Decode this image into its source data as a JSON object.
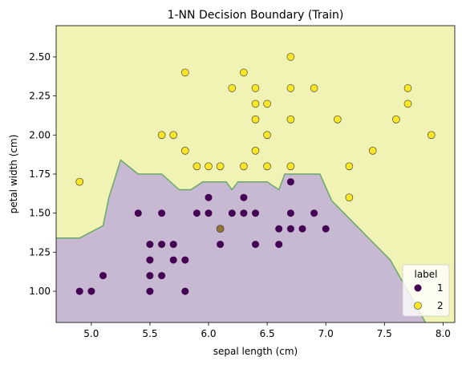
{
  "chart_data": {
    "type": "scatter",
    "title": "1-NN Decision Boundary (Train)",
    "xlabel": "sepal length (cm)",
    "ylabel": "petal width (cm)",
    "xlim": [
      4.7,
      8.1
    ],
    "ylim": [
      0.8,
      2.7
    ],
    "x_ticks": [
      5.0,
      5.5,
      6.0,
      6.5,
      7.0,
      7.5,
      8.0
    ],
    "x_tick_labels": [
      "5.0",
      "5.5",
      "6.0",
      "6.5",
      "7.0",
      "7.5",
      "8.0"
    ],
    "y_ticks": [
      1.0,
      1.25,
      1.5,
      1.75,
      2.0,
      2.25,
      2.5
    ],
    "y_tick_labels": [
      "1.00",
      "1.25",
      "1.50",
      "1.75",
      "2.00",
      "2.25",
      "2.50"
    ],
    "grid": false,
    "legend": {
      "title": "label",
      "placement": "lower-right",
      "entries": [
        "1",
        "2"
      ]
    },
    "regions": {
      "class_1_fill": "#c8b9d3",
      "class_2_fill": "#f0f3b4",
      "boundary_color": "#6aa76a",
      "boundary": [
        [
          4.7,
          1.34
        ],
        [
          4.9,
          1.34
        ],
        [
          5.0,
          1.38
        ],
        [
          5.1,
          1.42
        ],
        [
          5.15,
          1.6
        ],
        [
          5.25,
          1.84
        ],
        [
          5.4,
          1.75
        ],
        [
          5.6,
          1.75
        ],
        [
          5.75,
          1.65
        ],
        [
          5.85,
          1.65
        ],
        [
          5.95,
          1.7
        ],
        [
          6.15,
          1.7
        ],
        [
          6.2,
          1.65
        ],
        [
          6.25,
          1.7
        ],
        [
          6.5,
          1.7
        ],
        [
          6.6,
          1.65
        ],
        [
          6.65,
          1.75
        ],
        [
          6.95,
          1.75
        ],
        [
          7.05,
          1.58
        ],
        [
          7.55,
          1.2
        ],
        [
          7.85,
          0.8
        ]
      ]
    },
    "series": [
      {
        "name": "1",
        "color": "#440154",
        "points": [
          [
            4.9,
            1.0
          ],
          [
            5.0,
            1.0
          ],
          [
            5.1,
            1.1
          ],
          [
            5.4,
            1.5
          ],
          [
            5.5,
            1.3
          ],
          [
            5.5,
            1.2
          ],
          [
            5.5,
            1.1
          ],
          [
            5.5,
            1.0
          ],
          [
            5.6,
            1.5
          ],
          [
            5.6,
            1.3
          ],
          [
            5.6,
            1.1
          ],
          [
            5.7,
            1.3
          ],
          [
            5.7,
            1.2
          ],
          [
            5.8,
            1.2
          ],
          [
            5.8,
            1.0
          ],
          [
            5.9,
            1.5
          ],
          [
            6.0,
            1.6
          ],
          [
            6.0,
            1.5
          ],
          [
            6.1,
            1.4
          ],
          [
            6.1,
            1.3
          ],
          [
            6.2,
            1.5
          ],
          [
            6.3,
            1.6
          ],
          [
            6.3,
            1.5
          ],
          [
            6.4,
            1.5
          ],
          [
            6.4,
            1.3
          ],
          [
            6.6,
            1.4
          ],
          [
            6.6,
            1.3
          ],
          [
            6.7,
            1.7
          ],
          [
            6.7,
            1.5
          ],
          [
            6.7,
            1.4
          ],
          [
            6.8,
            1.4
          ],
          [
            6.9,
            1.5
          ],
          [
            7.0,
            1.4
          ]
        ]
      },
      {
        "name": "2",
        "color": "#fde725",
        "points": [
          [
            4.9,
            1.7
          ],
          [
            5.6,
            2.0
          ],
          [
            5.7,
            2.0
          ],
          [
            5.8,
            2.4
          ],
          [
            5.8,
            1.9
          ],
          [
            5.9,
            1.8
          ],
          [
            6.0,
            1.8
          ],
          [
            6.1,
            1.8
          ],
          [
            6.2,
            2.3
          ],
          [
            6.3,
            2.4
          ],
          [
            6.3,
            1.8
          ],
          [
            6.4,
            2.3
          ],
          [
            6.4,
            2.2
          ],
          [
            6.4,
            2.1
          ],
          [
            6.4,
            1.9
          ],
          [
            6.5,
            2.2
          ],
          [
            6.5,
            2.0
          ],
          [
            6.5,
            1.8
          ],
          [
            6.7,
            2.5
          ],
          [
            6.7,
            2.3
          ],
          [
            6.7,
            2.1
          ],
          [
            6.7,
            1.8
          ],
          [
            6.9,
            2.3
          ],
          [
            7.1,
            2.1
          ],
          [
            7.2,
            1.8
          ],
          [
            7.2,
            1.6
          ],
          [
            7.4,
            1.9
          ],
          [
            7.6,
            2.1
          ],
          [
            7.7,
            2.3
          ],
          [
            7.7,
            2.2
          ],
          [
            7.9,
            2.0
          ],
          [
            6.1,
            1.4
          ]
        ]
      }
    ]
  }
}
